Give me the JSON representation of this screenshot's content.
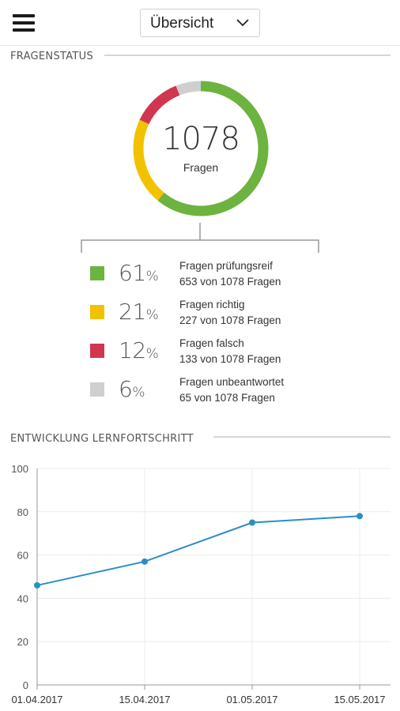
{
  "header": {
    "menu_icon": "hamburger-menu-icon",
    "view_select": {
      "value": "Übersicht",
      "icon": "chevron-down-icon"
    }
  },
  "fragenstatus": {
    "title": "FRAGENSTATUS",
    "total": "1078",
    "total_label": "Fragen",
    "items": [
      {
        "percent": "61",
        "unit": "%",
        "label": "Fragen prüfungsreif",
        "detail": "653 von 1078 Fragen",
        "value": 61,
        "color": "#6db33f"
      },
      {
        "percent": "21",
        "unit": "%",
        "label": "Fragen richtig",
        "detail": "227 von 1078 Fragen",
        "value": 21,
        "color": "#f2c200"
      },
      {
        "percent": "12",
        "unit": "%",
        "label": "Fragen falsch",
        "detail": "133 von 1078 Fragen",
        "value": 12,
        "color": "#d0364f"
      },
      {
        "percent": "6",
        "unit": "%",
        "label": "Fragen unbeantwortet",
        "detail": "65 von 1078 Fragen",
        "value": 6,
        "color": "#cfcfcf"
      }
    ]
  },
  "entwicklung": {
    "title": "ENTWICKLUNG LERNFORTSCHRITT"
  },
  "chart_data": {
    "type": "line",
    "title": "ENTWICKLUNG LERNFORTSCHRITT",
    "xlabel": "",
    "ylabel": "",
    "x": [
      "01.04.2017",
      "15.04.2017",
      "01.05.2017",
      "15.05.2017"
    ],
    "series": [
      {
        "values": [
          46,
          57,
          75,
          78
        ]
      }
    ],
    "ylim": [
      0,
      100
    ],
    "yticks": [
      0,
      20,
      40,
      60,
      80,
      100
    ],
    "grid": true,
    "line_color": "#2a8fc4"
  }
}
